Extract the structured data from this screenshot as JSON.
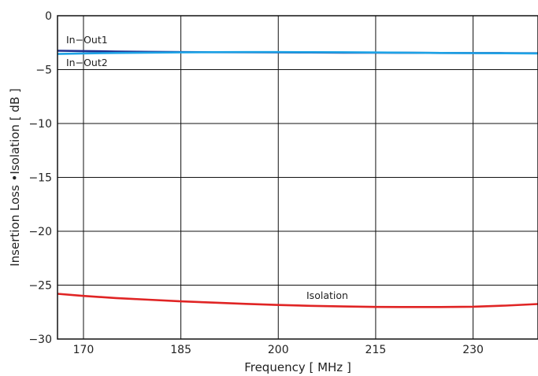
{
  "chart_data": {
    "type": "line",
    "title": "",
    "xlabel": "Frequency [ MHz ]",
    "ylabel": "Insertion Loss •Isolation [ dB ]",
    "xlim": [
      166,
      240
    ],
    "ylim": [
      -30,
      0
    ],
    "x_ticks": [
      170,
      185,
      200,
      215,
      230
    ],
    "y_ticks": [
      0,
      -5,
      -10,
      -15,
      -20,
      -25,
      -30
    ],
    "x_tick_labels": [
      "170",
      "185",
      "200",
      "215",
      "230"
    ],
    "y_tick_labels": [
      "0",
      "−5",
      "−10",
      "−15",
      "−20",
      "−25",
      "−30"
    ],
    "grid": true,
    "legend": "inline labels",
    "series": [
      {
        "name": "In−Out1",
        "color": "#1f2f8f",
        "x": [
          166,
          170,
          175,
          180,
          185,
          190,
          195,
          200,
          205,
          210,
          215,
          220,
          225,
          230,
          235,
          240
        ],
        "y": [
          -3.25,
          -3.28,
          -3.32,
          -3.35,
          -3.37,
          -3.38,
          -3.39,
          -3.4,
          -3.41,
          -3.42,
          -3.43,
          -3.44,
          -3.45,
          -3.46,
          -3.47,
          -3.48
        ]
      },
      {
        "name": "In−Out2",
        "color": "#1ea3e6",
        "x": [
          166,
          170,
          175,
          180,
          185,
          190,
          195,
          200,
          205,
          210,
          215,
          220,
          225,
          230,
          235,
          240
        ],
        "y": [
          -3.55,
          -3.5,
          -3.45,
          -3.42,
          -3.4,
          -3.38,
          -3.37,
          -3.37,
          -3.38,
          -3.39,
          -3.41,
          -3.43,
          -3.45,
          -3.47,
          -3.48,
          -3.5
        ]
      },
      {
        "name": "Isolation",
        "color": "#e02424",
        "x": [
          166,
          170,
          175,
          180,
          185,
          190,
          195,
          200,
          205,
          210,
          215,
          220,
          225,
          230,
          235,
          240
        ],
        "y": [
          -25.8,
          -26.0,
          -26.2,
          -26.35,
          -26.5,
          -26.62,
          -26.74,
          -26.84,
          -26.92,
          -26.98,
          -27.02,
          -27.03,
          -27.03,
          -27.0,
          -26.9,
          -26.75
        ]
      }
    ]
  }
}
